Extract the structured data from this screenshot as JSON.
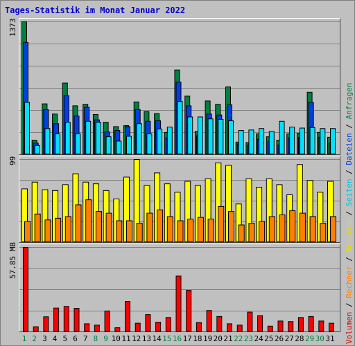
{
  "title": "Tages-Statistik im Monat Januar 2022",
  "panels": {
    "top_ylabel": "1373",
    "mid_ylabel": "99",
    "bottom_ylabel": "57.85 MB"
  },
  "side_legend": [
    {
      "text": "Volumen",
      "color": "#cc0000"
    },
    {
      "text": " / ",
      "color": "#000000"
    },
    {
      "text": "Rechner",
      "color": "#ff8000"
    },
    {
      "text": " / ",
      "color": "#000000"
    },
    {
      "text": "Besuche",
      "color": "#e0e000"
    },
    {
      "text": " / ",
      "color": "#000000"
    },
    {
      "text": "Seiten",
      "color": "#00c0e0"
    },
    {
      "text": " / ",
      "color": "#000000"
    },
    {
      "text": "Dateien",
      "color": "#0040e0"
    },
    {
      "text": " / ",
      "color": "#000000"
    },
    {
      "text": "Anfragen",
      "color": "#008040"
    }
  ],
  "colors": {
    "anfragen": "#008040",
    "dateien": "#0040e0",
    "seiten": "#00e0ff",
    "besuche": "#ffff00",
    "rechner": "#ff8000",
    "volumen": "#ff0000",
    "weekday_label": "#000000",
    "weekend_label": "#008040"
  },
  "chart_data": {
    "type": "bar",
    "title": "Tages-Statistik im Monat Januar 2022",
    "categories": [
      "1",
      "2",
      "3",
      "4",
      "5",
      "6",
      "7",
      "8",
      "9",
      "10",
      "11",
      "12",
      "13",
      "14",
      "15",
      "16",
      "17",
      "18",
      "19",
      "20",
      "21",
      "22",
      "23",
      "24",
      "25",
      "26",
      "27",
      "28",
      "29",
      "30",
      "31"
    ],
    "weekend_days": [
      "1",
      "2",
      "8",
      "9",
      "15",
      "16",
      "22",
      "23",
      "29",
      "30"
    ],
    "top": {
      "ylabel": "1373",
      "ylim": [
        0,
        1373
      ],
      "series": [
        {
          "name": "Anfragen",
          "values": [
            1373,
            150,
            525,
            420,
            740,
            505,
            520,
            415,
            335,
            290,
            300,
            545,
            445,
            425,
            230,
            875,
            605,
            240,
            555,
            520,
            700,
            130,
            125,
            215,
            185,
            150,
            215,
            220,
            645,
            230,
            180
          ]
        },
        {
          "name": "Dateien",
          "values": [
            1160,
            120,
            465,
            320,
            610,
            400,
            490,
            360,
            235,
            250,
            290,
            465,
            345,
            350,
            175,
            750,
            505,
            195,
            420,
            410,
            515,
            110,
            100,
            160,
            140,
            100,
            175,
            180,
            540,
            180,
            120
          ]
        },
        {
          "name": "Seiten",
          "values": [
            540,
            95,
            270,
            215,
            335,
            215,
            345,
            335,
            185,
            140,
            190,
            320,
            215,
            265,
            285,
            550,
            390,
            390,
            370,
            365,
            350,
            250,
            255,
            270,
            240,
            345,
            285,
            275,
            280,
            270,
            270
          ]
        }
      ]
    },
    "middle": {
      "ylabel": "99",
      "ylim": [
        0,
        99
      ],
      "series": [
        {
          "name": "Besuche",
          "values": [
            64,
            72,
            63,
            62,
            69,
            82,
            72,
            70,
            62,
            52,
            78,
            99,
            68,
            83,
            70,
            60,
            73,
            68,
            76,
            95,
            92,
            46,
            76,
            66,
            76,
            69,
            57,
            93,
            74,
            60,
            73
          ]
        },
        {
          "name": "Rechner",
          "values": [
            25,
            34,
            27,
            29,
            31,
            45,
            51,
            37,
            35,
            26,
            26,
            23,
            35,
            39,
            31,
            26,
            28,
            30,
            28,
            43,
            37,
            21,
            23,
            25,
            31,
            33,
            38,
            35,
            31,
            23,
            31
          ]
        }
      ]
    },
    "bottom": {
      "ylabel": "57.85 MB",
      "ylim": [
        0,
        57.85
      ],
      "series": [
        {
          "name": "Volumen",
          "values": [
            57.85,
            3.5,
            10.3,
            16.3,
            17.4,
            16.1,
            5.5,
            4.6,
            14.3,
            2.8,
            20.8,
            5.9,
            11.8,
            6.6,
            9.8,
            38.2,
            28.4,
            6.4,
            14.6,
            10.5,
            5.5,
            4.6,
            13.5,
            11.1,
            3.9,
            7.4,
            7.0,
            9.8,
            10.5,
            7.4,
            5.9
          ]
        }
      ]
    },
    "legend_placement": "right-vertical",
    "grid": true
  }
}
